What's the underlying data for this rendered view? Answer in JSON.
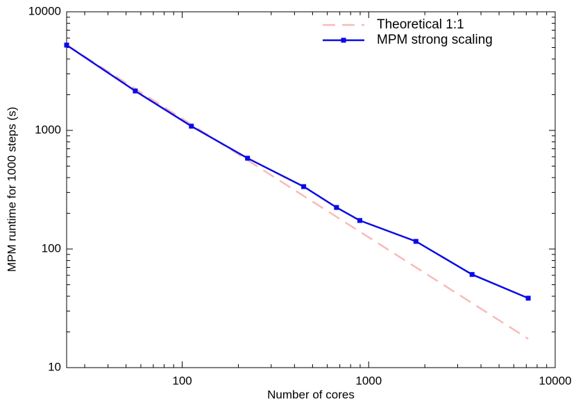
{
  "chart_data": {
    "type": "line",
    "x_label": "Number of cores",
    "y_label": "MPM runtime for 1000 steps (s)",
    "xscale": "log",
    "yscale": "log",
    "xlim": [
      24,
      10000
    ],
    "ylim": [
      10,
      10000
    ],
    "xticks": [
      100,
      1000,
      10000
    ],
    "yticks": [
      10,
      100,
      1000,
      10000
    ],
    "legend": "upper right",
    "series": [
      {
        "name": "Theoretical 1:1",
        "color": "#f7baba",
        "dashed": true,
        "marker": false,
        "x": [
          24,
          7168
        ],
        "values": [
          5240,
          17.5
        ]
      },
      {
        "name": "MPM strong scaling",
        "color": "#0a0ae6",
        "dashed": false,
        "marker": true,
        "x": [
          24,
          56,
          112,
          224,
          448,
          672,
          896,
          1792,
          3584,
          7168
        ],
        "values": [
          5240,
          2150,
          1085,
          583,
          336,
          224,
          174,
          116,
          61,
          38.5
        ]
      }
    ]
  }
}
